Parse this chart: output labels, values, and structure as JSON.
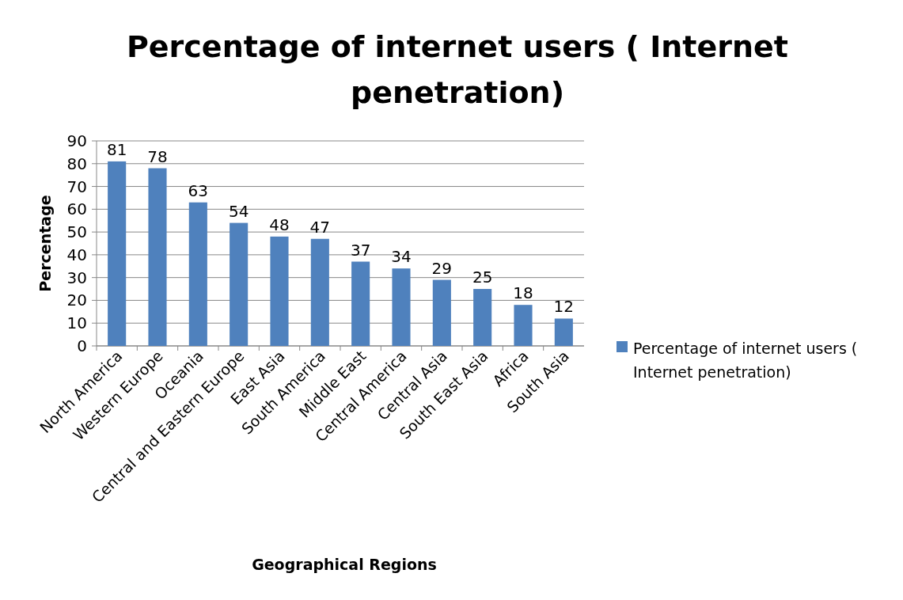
{
  "chart_data": {
    "type": "bar",
    "title": "Percentage of internet users ( Internet penetration)",
    "xlabel": "Geographical Regions",
    "ylabel": "Percentage",
    "categories": [
      "North America",
      "Western Europe",
      "Oceania",
      "Central and Eastern Europe",
      "East Asia",
      "South America",
      "Middle East",
      "Central America",
      "Central Asia",
      "South East Asia",
      "Africa",
      "South Asia"
    ],
    "series": [
      {
        "name": "Percentage of internet users ( Internet penetration)",
        "color": "#4f81bd",
        "values": [
          81,
          78,
          63,
          54,
          48,
          47,
          37,
          34,
          29,
          25,
          18,
          12
        ]
      }
    ],
    "ylim": [
      0,
      90
    ],
    "yticks": [
      0,
      10,
      20,
      30,
      40,
      50,
      60,
      70,
      80,
      90
    ],
    "grid": "y",
    "legend": "right",
    "data_labels": true
  }
}
